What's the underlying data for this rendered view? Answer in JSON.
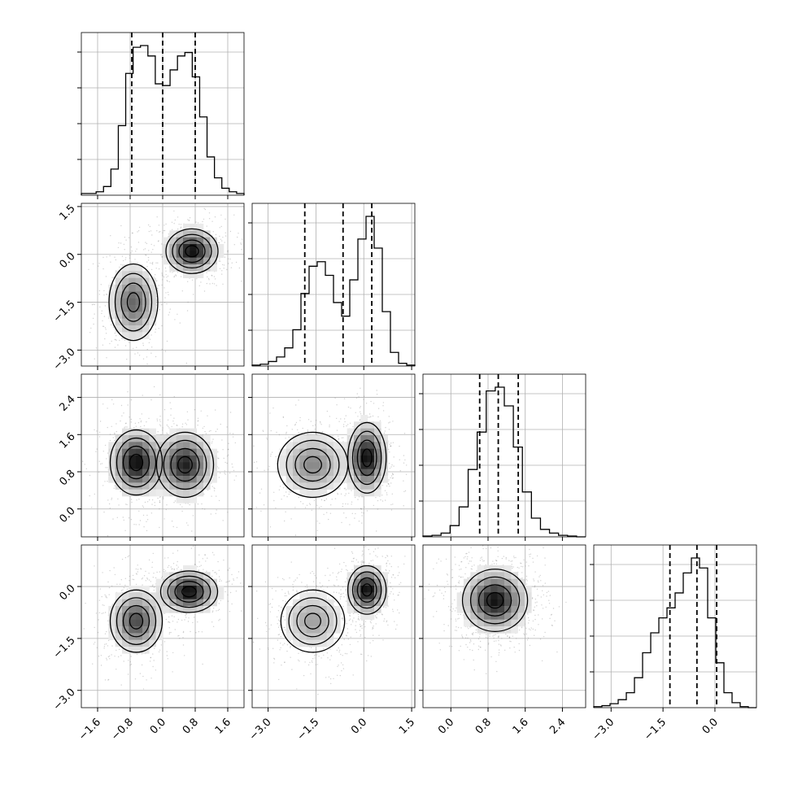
{
  "chart_data": {
    "type": "corner",
    "description_note": "",
    "dimensions": 4,
    "parameters": [
      "",
      "",
      "",
      ""
    ],
    "ranges": [
      [
        -2.0,
        2.0
      ],
      [
        -3.5,
        1.6
      ],
      [
        -0.6,
        2.9
      ],
      [
        -3.5,
        1.2
      ]
    ],
    "ticks": [
      [
        "−1.6",
        "−0.8",
        "0.0",
        "0.8",
        "1.6"
      ],
      [
        "−3.0",
        "−1.5",
        "0.0",
        "1.5"
      ],
      [
        "0.0",
        "0.8",
        "1.6",
        "2.4"
      ],
      [
        "−3.0",
        "−1.5",
        "0.0"
      ]
    ],
    "tick_values": [
      [
        -1.6,
        -0.8,
        0.0,
        0.8,
        1.6
      ],
      [
        -3.0,
        -1.5,
        0.0,
        1.5
      ],
      [
        0.0,
        0.8,
        1.6,
        2.4
      ],
      [
        -3.0,
        -1.5,
        0.0
      ]
    ],
    "quantiles": [
      [
        -0.76,
        0.0,
        0.8
      ],
      [
        -1.85,
        -0.65,
        0.25
      ],
      [
        0.62,
        1.02,
        1.45
      ],
      [
        -1.3,
        -0.52,
        0.05
      ]
    ],
    "histograms": [
      {
        "edges_min": -2.0,
        "edges_max": 2.0,
        "counts": [
          1,
          1,
          2,
          5,
          15,
          40,
          70,
          85,
          86,
          80,
          64,
          63,
          72,
          80,
          82,
          68,
          45,
          22,
          10,
          4,
          2,
          1
        ]
      },
      {
        "edges_min": -3.5,
        "edges_max": 1.6,
        "counts": [
          1,
          2,
          5,
          10,
          20,
          40,
          80,
          110,
          115,
          100,
          70,
          55,
          95,
          140,
          165,
          130,
          60,
          15,
          3,
          1
        ]
      },
      {
        "edges_min": -0.6,
        "edges_max": 2.9,
        "counts": [
          1,
          2,
          5,
          15,
          40,
          90,
          140,
          195,
          200,
          175,
          120,
          60,
          25,
          10,
          5,
          2,
          1,
          0
        ]
      },
      {
        "edges_min": -3.5,
        "edges_max": 1.2,
        "counts": [
          1,
          2,
          4,
          8,
          15,
          30,
          55,
          75,
          90,
          100,
          115,
          135,
          150,
          140,
          90,
          45,
          15,
          5,
          1,
          0
        ]
      }
    ],
    "blobs": [
      {
        "row": 1,
        "col": 0,
        "components": [
          {
            "mx": -0.72,
            "my": -1.5,
            "sx": 0.3,
            "sy": 0.6,
            "w": 0.5
          },
          {
            "mx": 0.72,
            "my": 0.1,
            "sx": 0.32,
            "sy": 0.35,
            "w": 0.5
          }
        ]
      },
      {
        "row": 2,
        "col": 0,
        "components": [
          {
            "mx": -0.65,
            "my": 1.0,
            "sx": 0.32,
            "sy": 0.35,
            "w": 0.5
          },
          {
            "mx": 0.55,
            "my": 0.95,
            "sx": 0.35,
            "sy": 0.35,
            "w": 0.5
          }
        ]
      },
      {
        "row": 2,
        "col": 1,
        "components": [
          {
            "mx": -1.6,
            "my": 0.95,
            "sx": 0.55,
            "sy": 0.35,
            "w": 0.45
          },
          {
            "mx": 0.1,
            "my": 1.1,
            "sx": 0.3,
            "sy": 0.38,
            "w": 0.55
          }
        ]
      },
      {
        "row": 3,
        "col": 0,
        "components": [
          {
            "mx": -0.65,
            "my": -1.0,
            "sx": 0.32,
            "sy": 0.45,
            "w": 0.5
          },
          {
            "mx": 0.65,
            "my": -0.15,
            "sx": 0.35,
            "sy": 0.3,
            "w": 0.5
          }
        ]
      },
      {
        "row": 3,
        "col": 1,
        "components": [
          {
            "mx": -1.6,
            "my": -1.0,
            "sx": 0.5,
            "sy": 0.45,
            "w": 0.45
          },
          {
            "mx": 0.1,
            "my": -0.1,
            "sx": 0.3,
            "sy": 0.35,
            "w": 0.55
          }
        ]
      },
      {
        "row": 3,
        "col": 2,
        "components": [
          {
            "mx": 0.95,
            "my": -0.4,
            "sx": 0.35,
            "sy": 0.45,
            "w": 1.0
          }
        ]
      }
    ],
    "grid": true,
    "line_style_quantiles": "dashed",
    "colors": {
      "line": "#000000",
      "grid": "#b0b0b0",
      "frame": "#000000",
      "points": "#7f7f7f"
    }
  }
}
